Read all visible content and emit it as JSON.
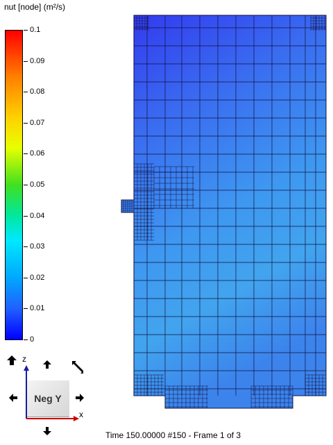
{
  "legend": {
    "title": "nut [node] (m²/s)",
    "ticks": [
      "0.1",
      "0.09",
      "0.08",
      "0.07",
      "0.06",
      "0.05",
      "0.04",
      "0.03",
      "0.02",
      "0.01",
      "0"
    ]
  },
  "orientation": {
    "view_label": "Neg Y",
    "axis_z": "z",
    "axis_x": "x"
  },
  "status": {
    "text": "Time 150.00000  #150 - Frame 1 of 3"
  },
  "colors": {
    "mesh_top": "#3a48f0",
    "mesh_mid": "#3890f0",
    "mesh_bottom": "#40a8ee",
    "mesh_lines": "#101040",
    "axis_z": "#1a1aa0",
    "axis_x": "#cc0000"
  }
}
